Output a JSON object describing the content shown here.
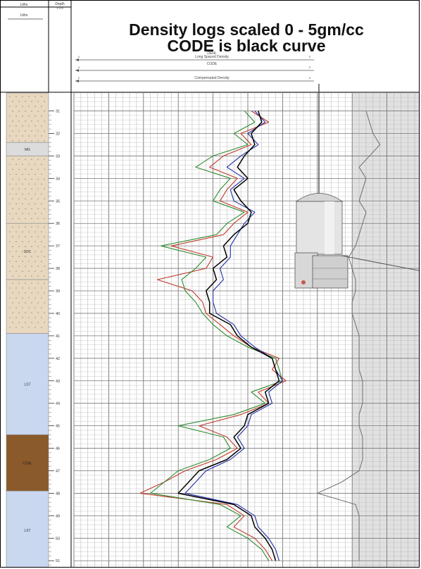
{
  "title_line1": "Density logs scaled 0 - 5gm/cc",
  "title_line2": "CODE is black curve",
  "header": {
    "litho_col_title": "Litho",
    "depth_col_title": "Depth",
    "depth_units": "1:100",
    "litho_label": "Litho"
  },
  "tracks": [
    {
      "mnemonic": "DENL",
      "description": "Long Spaced Density",
      "range_left": "0",
      "range_right": "5"
    },
    {
      "mnemonic": "CODE",
      "description": "",
      "range_left": "0",
      "range_right": "5"
    },
    {
      "mnemonic": "",
      "description": "Compensated Density",
      "range_left": "0",
      "range_right": "5"
    }
  ],
  "colors": {
    "red_curve": "#c0392b",
    "green_curve": "#2e8b2e",
    "blue_curve": "#1f2ea8",
    "black_curve": "#000000",
    "sand": "#e8d8c0",
    "clay_grey": "#dcdcdc",
    "limestone": "#c9d7ef",
    "coal_brown": "#8b5a2b",
    "track_shade": "#c8c8c8"
  },
  "litho_units": [
    {
      "label": "",
      "top": 30.2,
      "base": 32.4,
      "color": "#e8d8c0"
    },
    {
      "label": "MG",
      "top": 32.4,
      "base": 33.0,
      "color": "#dcdcdc"
    },
    {
      "label": "",
      "top": 33.0,
      "base": 36.0,
      "color": "#e8d8c0"
    },
    {
      "label": "SDC",
      "top": 36.0,
      "base": 38.5,
      "color": "#e8d8c0"
    },
    {
      "label": "",
      "top": 38.5,
      "base": 40.9,
      "color": "#e8d8c0"
    },
    {
      "label": "LST",
      "top": 40.9,
      "base": 45.4,
      "color": "#c9d7ef"
    },
    {
      "label": "COAL",
      "top": 45.4,
      "base": 47.9,
      "color": "#8b5a2b"
    },
    {
      "label": "LST",
      "top": 47.9,
      "base": 51.4,
      "color": "#c9d7ef"
    }
  ],
  "chart_data": {
    "type": "line",
    "title": "Density logs scaled 0 - 5gm/cc",
    "subtitle": "CODE is black curve",
    "xlim": [
      0,
      5
    ],
    "ylim": [
      30.2,
      51.4
    ],
    "y_ticks": [
      31,
      32,
      33,
      34,
      35,
      36,
      37,
      38,
      39,
      40,
      41,
      42,
      43,
      44,
      45,
      46,
      47,
      48,
      49,
      50,
      51
    ],
    "grid": true,
    "series": [
      {
        "name": "CODE",
        "color": "#000000",
        "depth": [
          31.0,
          31.5,
          32.0,
          32.5,
          33.0,
          33.5,
          34.0,
          34.5,
          35.0,
          35.5,
          36.0,
          36.5,
          37.0,
          37.5,
          38.0,
          38.5,
          39.0,
          39.5,
          40.0,
          40.5,
          41.0,
          41.5,
          42.0,
          42.5,
          43.0,
          43.5,
          44.0,
          44.5,
          45.0,
          45.5,
          46.0,
          46.5,
          47.0,
          47.5,
          48.0,
          48.5,
          49.0,
          49.5,
          50.0,
          50.5,
          51.0
        ],
        "values": [
          2.65,
          2.7,
          2.55,
          2.6,
          2.45,
          2.35,
          2.5,
          2.3,
          2.4,
          2.55,
          2.5,
          2.3,
          2.15,
          2.2,
          2.0,
          2.05,
          1.9,
          1.95,
          1.95,
          2.25,
          2.35,
          2.55,
          2.85,
          2.9,
          2.95,
          2.75,
          2.8,
          2.5,
          2.45,
          2.3,
          2.4,
          2.2,
          1.8,
          1.65,
          1.5,
          2.3,
          2.55,
          2.6,
          2.75,
          2.85,
          2.9
        ]
      },
      {
        "name": "DENL",
        "color": "#2e8b2e",
        "depth": [
          31.0,
          31.5,
          32.0,
          32.5,
          33.0,
          33.5,
          34.0,
          34.5,
          35.0,
          35.5,
          36.0,
          36.5,
          37.0,
          37.5,
          38.0,
          38.5,
          39.0,
          39.5,
          40.0,
          40.5,
          41.0,
          41.5,
          42.0,
          42.5,
          43.0,
          43.5,
          44.0,
          44.5,
          45.0,
          45.5,
          46.0,
          46.5,
          47.0,
          47.5,
          48.0,
          48.5,
          49.0,
          49.5,
          50.0,
          50.5,
          51.0
        ],
        "values": [
          2.45,
          2.6,
          2.3,
          2.5,
          2.0,
          1.75,
          2.25,
          2.1,
          2.0,
          2.45,
          2.2,
          2.05,
          1.25,
          1.9,
          1.75,
          1.55,
          1.6,
          1.75,
          1.85,
          2.0,
          2.2,
          2.5,
          2.9,
          2.95,
          3.0,
          2.55,
          2.75,
          2.3,
          1.5,
          2.15,
          2.25,
          1.95,
          1.5,
          1.3,
          1.1,
          2.1,
          2.4,
          2.2,
          2.5,
          2.7,
          2.8
        ]
      },
      {
        "name": "Compensated Density",
        "color": "#1f2ea8",
        "depth": [
          31.0,
          31.5,
          32.0,
          32.5,
          33.0,
          33.5,
          34.0,
          34.5,
          35.0,
          35.5,
          36.0,
          36.5,
          37.0,
          37.5,
          38.0,
          38.5,
          39.0,
          39.5,
          40.0,
          40.5,
          41.0,
          41.5,
          42.0,
          42.5,
          43.0,
          43.5,
          44.0,
          44.5,
          45.0,
          45.5,
          46.0,
          46.5,
          47.0,
          47.5,
          48.0,
          48.5,
          49.0,
          49.5,
          50.0,
          50.5,
          51.0
        ],
        "values": [
          2.6,
          2.75,
          2.5,
          2.65,
          2.4,
          2.2,
          2.45,
          2.25,
          2.3,
          2.6,
          2.45,
          2.35,
          2.25,
          2.25,
          2.1,
          2.15,
          2.0,
          2.0,
          2.05,
          2.3,
          2.4,
          2.6,
          2.85,
          2.9,
          3.0,
          2.8,
          2.85,
          2.55,
          2.5,
          2.35,
          2.45,
          2.25,
          1.9,
          1.75,
          1.6,
          2.35,
          2.6,
          2.65,
          2.8,
          2.9,
          2.95
        ]
      },
      {
        "name": "",
        "color": "#c0392b",
        "depth": [
          31.0,
          31.5,
          32.0,
          32.5,
          33.0,
          33.5,
          34.0,
          34.5,
          35.0,
          35.5,
          36.0,
          36.5,
          37.0,
          37.5,
          38.0,
          38.5,
          39.0,
          39.5,
          40.0,
          40.5,
          41.0,
          41.5,
          42.0,
          42.5,
          43.0,
          43.5,
          44.0,
          44.5,
          45.0,
          45.5,
          46.0,
          46.5,
          47.0,
          47.5,
          48.0,
          48.5,
          49.0,
          49.5,
          50.0,
          50.5,
          51.0
        ],
        "values": [
          2.55,
          2.8,
          2.4,
          2.55,
          2.15,
          1.95,
          2.35,
          2.2,
          2.1,
          2.5,
          2.3,
          2.15,
          1.4,
          2.0,
          1.9,
          1.2,
          1.7,
          1.85,
          1.9,
          2.1,
          2.3,
          2.55,
          2.95,
          2.85,
          3.05,
          2.65,
          2.8,
          2.4,
          1.8,
          2.2,
          2.35,
          2.05,
          1.6,
          1.3,
          0.95,
          2.2,
          2.45,
          2.3,
          2.6,
          2.75,
          2.85
        ]
      },
      {
        "name": "",
        "color": "#777777",
        "depth": [
          31.0,
          31.5,
          32.0,
          32.5,
          33.0,
          33.5,
          34.0,
          34.5,
          35.0,
          35.5,
          36.0,
          36.5,
          37.0,
          37.5,
          38.0,
          38.5,
          39.0,
          39.5,
          40.0,
          40.5,
          41.0,
          41.5,
          42.0,
          42.5,
          43.0,
          43.5,
          44.0,
          44.5,
          45.0,
          45.5,
          46.0,
          46.5,
          47.0,
          47.5,
          48.0,
          48.5,
          49.0,
          49.5,
          50.0,
          50.5,
          51.0
        ],
        "values": [
          4.2,
          4.25,
          4.3,
          4.4,
          4.25,
          4.1,
          4.2,
          4.15,
          4.1,
          4.2,
          4.15,
          4.1,
          4.05,
          3.95,
          4.0,
          4.05,
          4.05,
          4.0,
          4.0,
          4.05,
          4.1,
          4.1,
          4.1,
          4.1,
          4.15,
          4.15,
          4.15,
          4.1,
          4.1,
          4.15,
          4.15,
          4.15,
          4.1,
          3.85,
          3.5,
          4.05,
          4.1,
          4.1,
          4.1,
          4.1,
          4.1
        ]
      }
    ]
  }
}
